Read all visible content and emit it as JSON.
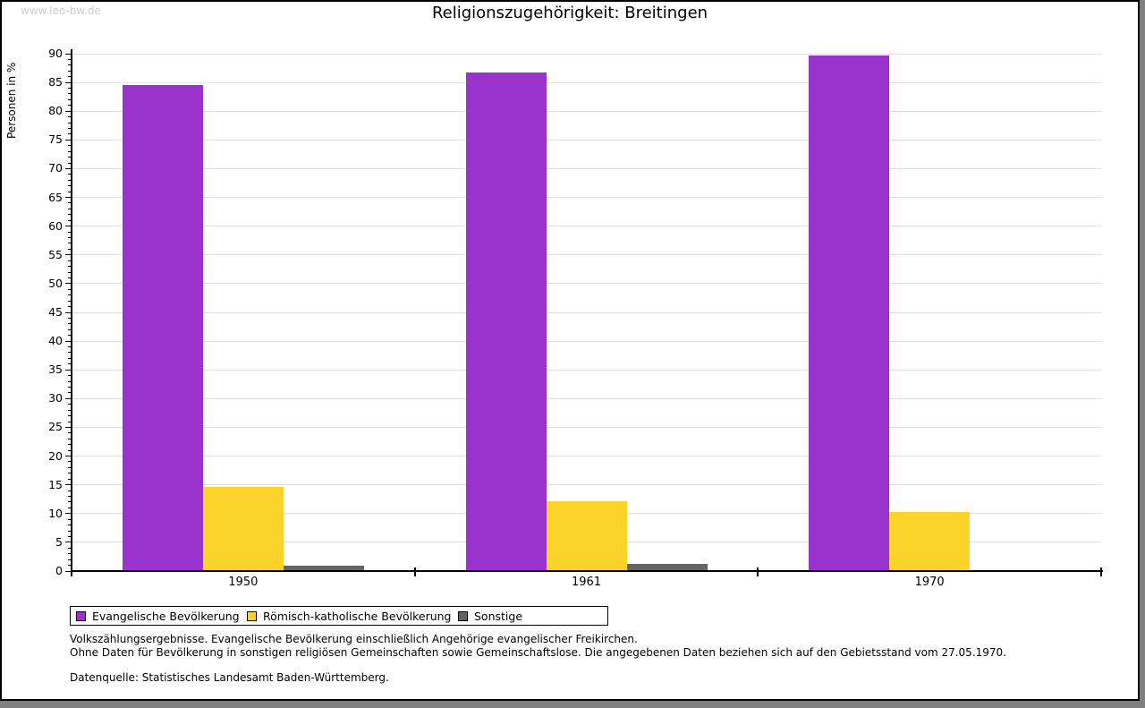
{
  "watermark": "www.leo-bw.de",
  "title": "Religionszugehörigkeit: Breitingen",
  "chart_data": {
    "type": "bar",
    "title": "Religionszugehörigkeit: Breitingen",
    "categories": [
      "1950",
      "1961",
      "1970"
    ],
    "series": [
      {
        "name": "Evangelische Bevölkerung",
        "color": "#9933cc",
        "values": [
          84.6,
          86.8,
          89.7
        ]
      },
      {
        "name": "Römisch-katholische Bevölkerung",
        "color": "#fcd32b",
        "values": [
          14.6,
          12.2,
          10.3
        ]
      },
      {
        "name": "Sonstige",
        "color": "#646464",
        "values": [
          1.0,
          1.2,
          0.0
        ]
      }
    ],
    "xlabel": "",
    "ylabel": "Personen in %",
    "ylim": [
      0,
      90
    ],
    "ytick_step_major": 5,
    "ytick_step_minor": 1,
    "grid": true,
    "gridline_color": "#e0e0e0",
    "legend_position": "bottom"
  },
  "footnotes": {
    "line1": "Volkszählungsergebnisse. Evangelische Bevölkerung einschließlich Angehörige evangelischer Freikirchen.",
    "line2": "Ohne Daten für Bevölkerung in sonstigen religiösen Gemeinschaften sowie Gemeinschaftslose. Die angegebenen Daten beziehen sich auf den Gebietsstand vom 27.05.1970.",
    "source": "Datenquelle: Statistisches Landesamt Baden-Württemberg."
  }
}
